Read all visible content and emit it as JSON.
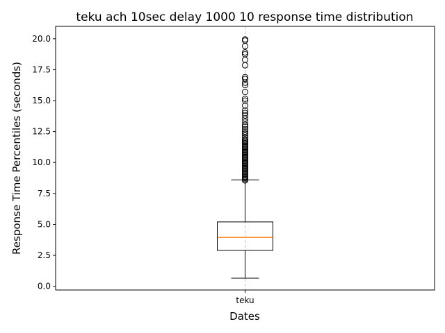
{
  "chart_data": {
    "type": "box",
    "title": "teku ach 10sec delay 1000 10 response time distribution",
    "xlabel": "Dates",
    "ylabel": "Response Time Percentiles (seconds)",
    "categories": [
      "teku"
    ],
    "ylim": [
      -0.3,
      21.0
    ],
    "yticks": [
      0.0,
      2.5,
      5.0,
      7.5,
      10.0,
      12.5,
      15.0,
      17.5,
      20.0
    ],
    "ytick_labels": [
      "0.0",
      "2.5",
      "5.0",
      "7.5",
      "10.0",
      "12.5",
      "15.0",
      "17.5",
      "20.0"
    ],
    "boxes": [
      {
        "category": "teku",
        "whisker_low": 0.65,
        "q1": 2.9,
        "median": 3.95,
        "q3": 5.2,
        "whisker_high": 8.6,
        "outliers": [
          8.55,
          8.65,
          8.75,
          8.85,
          8.95,
          9.05,
          9.15,
          9.25,
          9.35,
          9.45,
          9.55,
          9.65,
          9.75,
          9.85,
          9.95,
          10.05,
          10.15,
          10.25,
          10.35,
          10.45,
          10.55,
          10.65,
          10.75,
          10.85,
          10.95,
          11.05,
          11.15,
          11.25,
          11.35,
          11.45,
          11.55,
          11.65,
          11.75,
          11.85,
          12.0,
          12.2,
          12.35,
          12.5,
          12.7,
          12.9,
          13.05,
          13.3,
          13.55,
          13.8,
          14.0,
          14.2,
          14.6,
          15.0,
          15.15,
          15.7,
          16.25,
          16.45,
          16.75,
          16.9,
          17.85,
          18.3,
          18.75,
          18.9,
          19.4,
          19.85,
          19.95
        ]
      }
    ],
    "grid": "x-only dashed",
    "colors": {
      "median": "#ff7f0e",
      "box": "#000000",
      "grid": "#b0b0b0"
    }
  }
}
